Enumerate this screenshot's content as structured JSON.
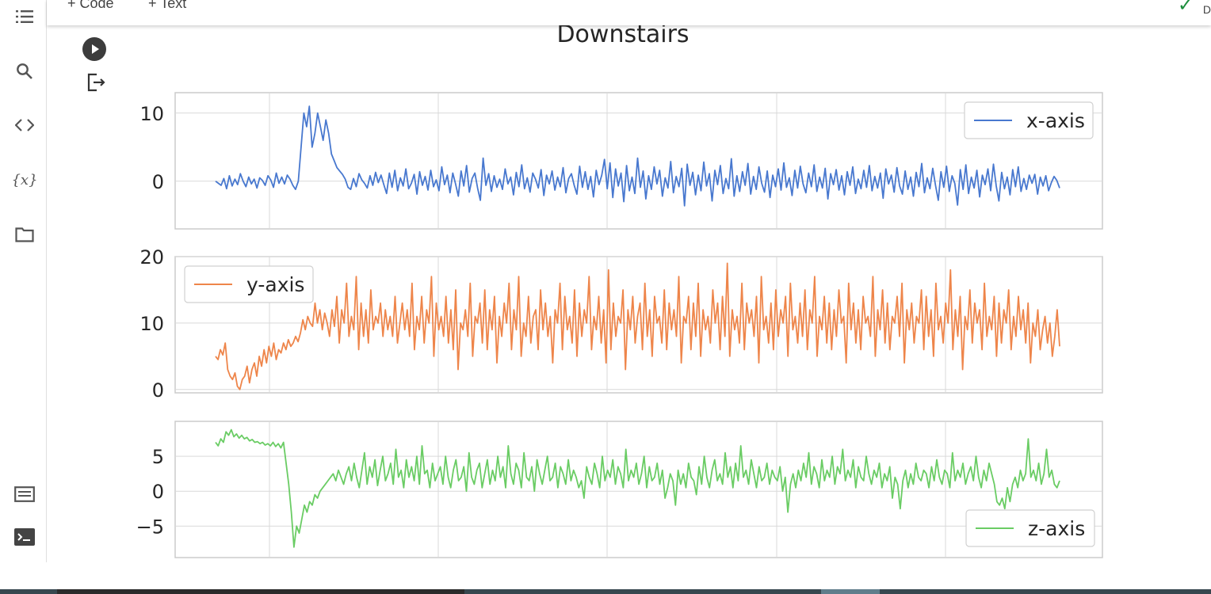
{
  "toolbar": {
    "add_code_label": "+ Code",
    "add_text_label": "+ Text",
    "status_letter": "D"
  },
  "sidebar": {
    "items": [
      {
        "icon": "table-of-contents-icon"
      },
      {
        "icon": "search-icon"
      },
      {
        "icon": "code-snippets-icon"
      },
      {
        "icon": "variables-icon",
        "glyph": "{x}"
      },
      {
        "icon": "files-icon"
      },
      {
        "icon": "command-palette-icon"
      },
      {
        "icon": "terminal-icon"
      }
    ]
  },
  "colors": {
    "accent_check": "#1e8e3e",
    "x_series": "#4878cf",
    "y_series": "#ee854a",
    "z_series": "#6acc64"
  },
  "chart_data": {
    "type": "line",
    "title": "Downstairs",
    "panels": [
      {
        "series": [
          {
            "name": "x-axis",
            "values": [
              0,
              -0.3,
              -0.6,
              0.4,
              -1.1,
              0.8,
              -0.7,
              0.3,
              -0.5,
              1.1,
              0,
              -0.8,
              0.6,
              -0.4,
              0.3,
              -1,
              0.5,
              0.1,
              -0.6,
              0.8,
              0.2,
              -0.9,
              1.2,
              -0.3,
              0.6,
              -0.4,
              0.9,
              0.3,
              -0.6,
              -1.2,
              0,
              5,
              10,
              8,
              11,
              5,
              7,
              10,
              8,
              6,
              9,
              7,
              4,
              3,
              2,
              1.5,
              1,
              0.3,
              -0.9,
              -1.2,
              0.4,
              -0.8,
              1.1,
              0.2,
              -0.3,
              -1,
              0.8,
              -0.6,
              1.3,
              -0.2,
              0.9,
              -0.5,
              -1.8,
              1.2,
              -0.9,
              1.6,
              -1.4,
              0.5,
              -0.7,
              1.8,
              -1.1,
              -0.3,
              1,
              -1.9,
              1.4,
              -0.6,
              0.7,
              -1.3,
              1.6,
              -0.8,
              0.2,
              -1.4,
              2.1,
              -0.5,
              0.9,
              -1.7,
              1.2,
              -0.4,
              -2.2,
              1.5,
              -0.7,
              2.3,
              -1.6,
              0.4,
              1.2,
              -1,
              -2.8,
              3.4,
              -0.6,
              1.1,
              -1.5,
              0.8,
              -0.9,
              0.3,
              -1.2,
              1.8,
              -0.4,
              0.6,
              -2,
              1.3,
              -0.8,
              2.4,
              -1.1,
              0.5,
              -1.6,
              1.2,
              0.3,
              -1,
              1.7,
              -2.1,
              0.9,
              -0.4,
              1.5,
              -1.3,
              0.6,
              -0.8,
              2,
              -1.7,
              0.4,
              1.1,
              -0.6,
              -1.9,
              2.2,
              -0.9,
              1.4,
              -1.2,
              0.7,
              -2.3,
              1.6,
              -0.5,
              0.9,
              3.2,
              -1.1,
              2.7,
              -2.4,
              1.8,
              -0.7,
              1.2,
              -3,
              2.3,
              -1.4,
              0.6,
              -1.8,
              3.4,
              -0.9,
              1.5,
              -2.6,
              0.8,
              -1.2,
              2.1,
              -0.4,
              1.6,
              -2.2,
              0.5,
              -1,
              2.9,
              -1.7,
              0.7,
              -0.8,
              1.9,
              -3.6,
              2.5,
              -0.6,
              1.3,
              -2,
              0.9,
              -1.4,
              2.8,
              -0.7,
              1.1,
              -2.9,
              1.6,
              -0.5,
              2.3,
              -1.8,
              0.4,
              -1.1,
              3.3,
              -2.2,
              0.8,
              -1.5,
              1.4,
              -0.6,
              2.6,
              -1.9,
              0.7,
              -1.2,
              2.1,
              -0.3,
              -1.6,
              1.5,
              -2.4,
              0.9,
              -0.8,
              1.8,
              -1.3,
              2.7,
              -0.9,
              0.5,
              -2.1,
              1.6,
              -1,
              2.2,
              -0.4,
              -1.7,
              1.2,
              -0.8,
              2.4,
              -1.5,
              0.6,
              -1,
              1.9,
              -2.6,
              1.1,
              -0.5,
              1.7,
              -1.3,
              0.8,
              -2,
              1.4,
              -0.6,
              2.1,
              -1.8,
              0.3,
              -1.1,
              1.6,
              -0.9,
              2.3,
              -1.4,
              0.7,
              -1,
              1.2,
              -2.5,
              1.8,
              -0.4,
              0.9,
              -1.6,
              2,
              -0.7,
              -1.9,
              1.5,
              -1.2,
              0.6,
              -2.2,
              1.3,
              -0.8,
              2.6,
              -1.7,
              0.5,
              -1.1,
              1.9,
              -0.6,
              -2.8,
              1.4,
              -0.9,
              2.2,
              -1.5,
              0.8,
              -0.3,
              -3.5,
              1.7,
              -1.2,
              2.4,
              -1.8,
              0.6,
              -1,
              1.6,
              -2.3,
              0.9,
              -0.5,
              1.8,
              -1.4,
              2.5,
              -0.7,
              -2.9,
              1.3,
              -1.1,
              0.6,
              -2,
              1.7,
              -0.8,
              2.1,
              -1.5,
              0.4,
              -1.2,
              0.9,
              -0.3,
              1,
              -1.9,
              0.6,
              -0.7,
              0.8,
              -1.4,
              -0.2,
              0.7,
              0.1,
              -1
            ]
          }
        ],
        "ylim": [
          -7,
          13
        ],
        "yticks": [
          0,
          10
        ],
        "tick_labels": [
          "0",
          "10"
        ],
        "legend": "top-right"
      },
      {
        "series": [
          {
            "name": "y-axis",
            "values": [
              5,
              4.5,
              6,
              5.2,
              7,
              3,
              2,
              1.5,
              2.5,
              0.5,
              0,
              1.5,
              2,
              3.5,
              1,
              3,
              4,
              2,
              5,
              3.5,
              6,
              4,
              6.5,
              5,
              7,
              4.5,
              6,
              5.5,
              7,
              6,
              7.5,
              6.5,
              7,
              8,
              7.2,
              8.5,
              10.5,
              9,
              11,
              10,
              9.5,
              13,
              10,
              12,
              9,
              11.5,
              10,
              8,
              12,
              9.5,
              14,
              7,
              12,
              10,
              16,
              8,
              11,
              9,
              17,
              6,
              13,
              8,
              12,
              7,
              15,
              9,
              11,
              10,
              13,
              8,
              12,
              9,
              11,
              8,
              14,
              7,
              10,
              13,
              9,
              12,
              8,
              16,
              6,
              11,
              9,
              14,
              7,
              12,
              10,
              17,
              5,
              13,
              9,
              11,
              8,
              14,
              7,
              12,
              6,
              15,
              3,
              10,
              9,
              12,
              8,
              16,
              5,
              11,
              10,
              13,
              7,
              15,
              6,
              12,
              9,
              14,
              4,
              11,
              8,
              13,
              10,
              16,
              6,
              12,
              9,
              17,
              5,
              10,
              8,
              14,
              7,
              11,
              12,
              6,
              15,
              9,
              13,
              8,
              11,
              4,
              12,
              10,
              16,
              6,
              14,
              9,
              11,
              7,
              15,
              5,
              13,
              8,
              12,
              10,
              17,
              6,
              11,
              9,
              14,
              7,
              12,
              4,
              18,
              6,
              13,
              8,
              11,
              10,
              15,
              3,
              12,
              9,
              14,
              7,
              11,
              13,
              6,
              16,
              8,
              12,
              5,
              14,
              10,
              11,
              7,
              15,
              6,
              13,
              9,
              12,
              8,
              17,
              4,
              11,
              10,
              14,
              6,
              13,
              8,
              16,
              5,
              12,
              9,
              11,
              7,
              15,
              10,
              13,
              6,
              14,
              8,
              19,
              5,
              12,
              9,
              11,
              7,
              16,
              6,
              13,
              10,
              12,
              8,
              14,
              4,
              17,
              9,
              11,
              7,
              13,
              6,
              15,
              8,
              12,
              10,
              14,
              5,
              16,
              9,
              11,
              7,
              13,
              8,
              15,
              6,
              12,
              10,
              17,
              5,
              11,
              9,
              14,
              7,
              13,
              6,
              12,
              8,
              15,
              10,
              11,
              4,
              16,
              9,
              13,
              7,
              12,
              6,
              14,
              10,
              11,
              8,
              17,
              5,
              12,
              9,
              15,
              7,
              13,
              6,
              11,
              10,
              14,
              8,
              16,
              4,
              12,
              9,
              13,
              7,
              11,
              10,
              15,
              6,
              14,
              8,
              12,
              5,
              16,
              9,
              11,
              7,
              13,
              10,
              18,
              6,
              12,
              8,
              14,
              3,
              11,
              9,
              15,
              7,
              13,
              10,
              12,
              6,
              16,
              8,
              11,
              9,
              14,
              5,
              13,
              7,
              12,
              10,
              15,
              6,
              11,
              8,
              14,
              9,
              12,
              7,
              13,
              4,
              10,
              8,
              12,
              6,
              9,
              11,
              7,
              10,
              5,
              8,
              12,
              6.5
            ]
          }
        ],
        "ylim": [
          -0.5,
          20
        ],
        "yticks": [
          0,
          10,
          20
        ],
        "tick_labels": [
          "0",
          "10",
          "20"
        ],
        "legend": "top-left"
      },
      {
        "series": [
          {
            "name": "z-axis",
            "values": [
              7,
              6.5,
              7.5,
              7,
              8.5,
              8,
              8.8,
              7.8,
              8.2,
              7.6,
              8,
              7.5,
              7.7,
              7.2,
              7.4,
              7,
              7.1,
              6.8,
              7,
              6.6,
              6.8,
              6.5,
              7,
              6.4,
              6.8,
              6.2,
              7,
              4,
              1,
              -3,
              -8,
              -5,
              -6,
              -4,
              -2,
              -3,
              -1.5,
              -2,
              -0.5,
              -1,
              0,
              0.5,
              1,
              1.5,
              2,
              2.5,
              1.5,
              3,
              2,
              1,
              2.5,
              3.5,
              1.5,
              4,
              2,
              0.5,
              3,
              5.5,
              1,
              3.5,
              2,
              4.5,
              0.8,
              3,
              5,
              1.5,
              2.5,
              4,
              1,
              6,
              2,
              3,
              0.5,
              4.5,
              2,
              3.5,
              1.5,
              5,
              1,
              6.5,
              2.5,
              3,
              0.5,
              4,
              1.5,
              2.5,
              3.5,
              1,
              5,
              2,
              0.5,
              3,
              4.5,
              1.5,
              2,
              3.5,
              0,
              5.5,
              2,
              1,
              3,
              4,
              0.5,
              2.5,
              4.5,
              1,
              3,
              1.5,
              5,
              2,
              3.5,
              0.5,
              6.5,
              2.5,
              1,
              4,
              3,
              0.5,
              5.5,
              2,
              1.5,
              3.5,
              0,
              4.5,
              2.5,
              1,
              3,
              5,
              1.5,
              2,
              4,
              0.5,
              3.5,
              2.5,
              1,
              4.5,
              1.5,
              3,
              2,
              0.5,
              1.5,
              -1,
              3.5,
              2,
              1,
              4,
              2.5,
              0.5,
              5,
              1.5,
              3,
              2,
              4.5,
              1,
              3.5,
              2.5,
              0.5,
              6,
              1.5,
              3,
              2,
              4,
              1,
              2.5,
              5,
              0.5,
              3.5,
              1.5,
              2,
              4,
              1,
              3,
              -1,
              0.5,
              2.5,
              1.5,
              -2,
              3,
              1,
              2.5,
              0.5,
              4,
              2,
              1.5,
              -0.5,
              3.5,
              1,
              5,
              2,
              0.5,
              3,
              4.5,
              1.5,
              2.5,
              1,
              5.5,
              2,
              3.5,
              0.5,
              4,
              1.5,
              6.5,
              2,
              3,
              1,
              4.5,
              2.5,
              0.5,
              3.5,
              1.5,
              2,
              4,
              1,
              3,
              2,
              1.5,
              3.5,
              0,
              2,
              -3,
              1,
              2.5,
              0.5,
              3,
              1.5,
              4,
              2,
              5.5,
              1,
              3.5,
              2.5,
              0.5,
              4.5,
              1.5,
              3,
              2,
              5,
              1,
              3.5,
              2.5,
              6,
              1.5,
              3,
              2,
              4.5,
              0.5,
              3.5,
              2,
              1.5,
              5,
              2.5,
              1,
              3,
              2,
              4,
              0.5,
              2.5,
              1.5,
              3.5,
              -1,
              2,
              1,
              -2.5,
              1.5,
              3,
              0.5,
              2.5,
              1,
              4,
              2,
              1.5,
              3,
              2.5,
              0.5,
              3.5,
              1.5,
              4.5,
              2,
              1,
              3,
              2.5,
              0.5,
              5.5,
              1.5,
              3,
              2,
              4,
              1,
              2.5,
              3.5,
              1.5,
              5,
              2,
              0.5,
              3,
              1.5,
              4,
              2.5,
              1,
              -1.5,
              -2,
              -1,
              -2.5,
              0.5,
              -1.5,
              1,
              2,
              0.5,
              3,
              1.5,
              2.5,
              7.5,
              2,
              3,
              1.5,
              4,
              1,
              2.5,
              6,
              2,
              3,
              1,
              0.5,
              1.5
            ]
          }
        ],
        "ylim": [
          -9.5,
          10
        ],
        "yticks": [
          -5,
          0,
          5
        ],
        "tick_labels": [
          "−5",
          "0",
          "5"
        ],
        "legend": "bottom-right"
      }
    ]
  }
}
